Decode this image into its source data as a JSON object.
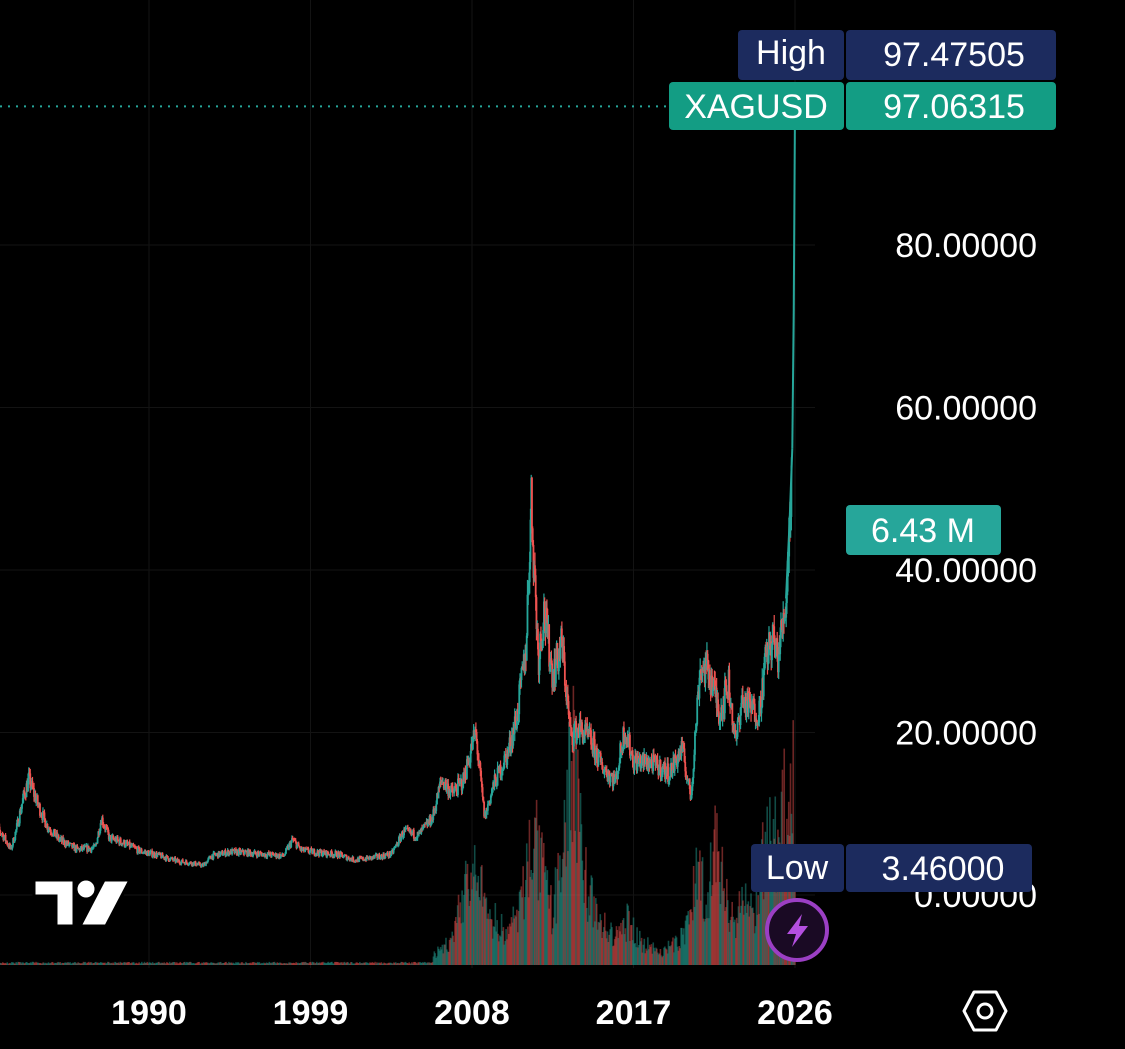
{
  "chart_data": {
    "type": "candlestick",
    "symbol": "XAGUSD",
    "scale": "linear",
    "grid": true,
    "x_axis": {
      "ticks": [
        "1990",
        "1999",
        "2008",
        "2017",
        "2026"
      ],
      "range": [
        1981.3,
        2027.5
      ]
    },
    "y_axis": {
      "ticks": [
        "0.00000",
        "20.00000",
        "40.00000",
        "60.00000",
        "80.00000"
      ],
      "tick_values": [
        0,
        20,
        40,
        60,
        80
      ],
      "range": [
        -10,
        108
      ]
    },
    "price_points": [
      [
        1981.3,
        8.4
      ],
      [
        1981.8,
        7.6
      ],
      [
        1982.3,
        5.6
      ],
      [
        1982.6,
        8.0
      ],
      [
        1983.0,
        12.0
      ],
      [
        1983.3,
        14.2
      ],
      [
        1983.8,
        11.2
      ],
      [
        1984.3,
        8.6
      ],
      [
        1985.0,
        6.8
      ],
      [
        1986.0,
        5.6
      ],
      [
        1987.0,
        5.8
      ],
      [
        1987.35,
        9.5
      ],
      [
        1987.8,
        7.0
      ],
      [
        1988.5,
        6.5
      ],
      [
        1989.5,
        5.4
      ],
      [
        1990.5,
        4.9
      ],
      [
        1991.5,
        4.2
      ],
      [
        1992.5,
        3.9
      ],
      [
        1993.0,
        3.6
      ],
      [
        1993.5,
        4.8
      ],
      [
        1994.5,
        5.3
      ],
      [
        1995.5,
        5.2
      ],
      [
        1996.5,
        5.0
      ],
      [
        1997.5,
        4.8
      ],
      [
        1998.0,
        6.8
      ],
      [
        1998.5,
        5.5
      ],
      [
        1999.5,
        5.2
      ],
      [
        2000.5,
        5.0
      ],
      [
        2001.5,
        4.3
      ],
      [
        2002.5,
        4.6
      ],
      [
        2003.5,
        5.0
      ],
      [
        2004.2,
        7.8
      ],
      [
        2005.0,
        7.3
      ],
      [
        2005.8,
        9.5
      ],
      [
        2006.3,
        14.2
      ],
      [
        2006.9,
        12.5
      ],
      [
        2007.5,
        14.0
      ],
      [
        2008.2,
        20.0
      ],
      [
        2008.7,
        9.5
      ],
      [
        2009.2,
        13.5
      ],
      [
        2010.0,
        17.5
      ],
      [
        2010.5,
        22.0
      ],
      [
        2011.0,
        30.0
      ],
      [
        2011.3,
        48.5
      ],
      [
        2011.7,
        29.0
      ],
      [
        2012.0,
        35.0
      ],
      [
        2012.5,
        27.0
      ],
      [
        2013.0,
        31.0
      ],
      [
        2013.5,
        19.5
      ],
      [
        2014.0,
        20.5
      ],
      [
        2014.6,
        19.0
      ],
      [
        2015.2,
        16.0
      ],
      [
        2016.0,
        14.0
      ],
      [
        2016.5,
        20.5
      ],
      [
        2017.0,
        16.5
      ],
      [
        2018.0,
        16.2
      ],
      [
        2019.0,
        15.0
      ],
      [
        2019.7,
        18.0
      ],
      [
        2020.2,
        12.0
      ],
      [
        2020.7,
        28.0
      ],
      [
        2021.2,
        27.5
      ],
      [
        2021.8,
        22.5
      ],
      [
        2022.3,
        26.0
      ],
      [
        2022.7,
        18.5
      ],
      [
        2023.0,
        24.0
      ],
      [
        2023.5,
        23.0
      ],
      [
        2024.0,
        22.5
      ],
      [
        2024.4,
        29.5
      ],
      [
        2024.8,
        31.5
      ],
      [
        2025.0,
        29.0
      ],
      [
        2025.3,
        33.0
      ],
      [
        2025.5,
        36.5
      ],
      [
        2025.7,
        46.0
      ],
      [
        2025.85,
        55.0
      ],
      [
        2025.93,
        72.0
      ],
      [
        2026.0,
        97.06
      ]
    ],
    "volume_points": [
      [
        2005.8,
        0.04
      ],
      [
        2007.0,
        0.12
      ],
      [
        2007.6,
        0.37
      ],
      [
        2008.3,
        0.38
      ],
      [
        2009.0,
        0.22
      ],
      [
        2010.0,
        0.14
      ],
      [
        2010.8,
        0.28
      ],
      [
        2011.3,
        0.62
      ],
      [
        2011.8,
        0.45
      ],
      [
        2012.5,
        0.22
      ],
      [
        2013.3,
        0.7
      ],
      [
        2013.7,
        0.95
      ],
      [
        2014.3,
        0.4
      ],
      [
        2015.0,
        0.2
      ],
      [
        2016.0,
        0.12
      ],
      [
        2016.7,
        0.2
      ],
      [
        2017.5,
        0.1
      ],
      [
        2018.5,
        0.06
      ],
      [
        2019.5,
        0.1
      ],
      [
        2020.2,
        0.22
      ],
      [
        2020.6,
        0.5
      ],
      [
        2021.0,
        0.3
      ],
      [
        2021.6,
        0.55
      ],
      [
        2022.0,
        0.35
      ],
      [
        2022.6,
        0.2
      ],
      [
        2023.0,
        0.28
      ],
      [
        2023.7,
        0.22
      ],
      [
        2024.2,
        0.45
      ],
      [
        2024.7,
        0.55
      ],
      [
        2025.2,
        0.65
      ],
      [
        2025.6,
        0.75
      ],
      [
        2025.9,
        0.85
      ],
      [
        2026.0,
        0.3
      ]
    ],
    "volume_label": "6.43 M",
    "labels": {
      "high": {
        "name": "High",
        "value": "97.47505"
      },
      "symbol": {
        "name": "XAGUSD",
        "value": "97.06315"
      },
      "low": {
        "name": "Low",
        "value": "3.46000"
      }
    },
    "last_price": 97.06315,
    "colors": {
      "up": "#26a69a",
      "down": "#ef5350",
      "high_low_label": "#1c2b5e",
      "symbol_label": "#139d84",
      "volume_label": "#26a69a",
      "grid": "#131313",
      "background": "#000000"
    }
  },
  "logo_icon": "tradingview-logo-icon",
  "flash_icon": "lightning-bolt-icon",
  "settings_icon": "hexagon-settings-icon"
}
